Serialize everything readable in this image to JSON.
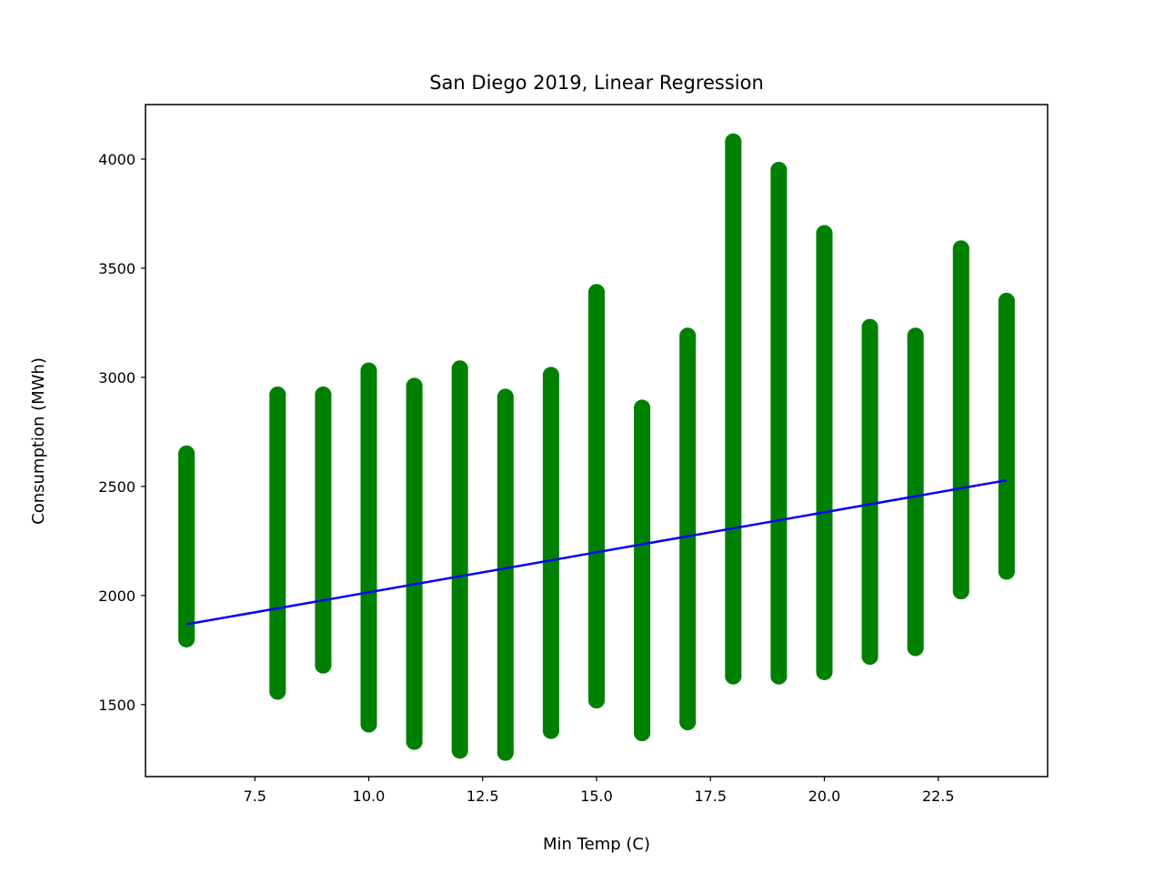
{
  "chart_data": {
    "type": "scatter",
    "title": "San Diego 2019, Linear Regression",
    "xlabel": "Min Temp (C)",
    "ylabel": "Consumption (MWh)",
    "xlim": [
      5.1,
      24.9
    ],
    "ylim": [
      1170,
      4250
    ],
    "xticks": [
      "7.5",
      "10.0",
      "12.5",
      "15.0",
      "17.5",
      "20.0",
      "22.5"
    ],
    "yticks": [
      "1500",
      "2000",
      "2500",
      "3000",
      "3500",
      "4000"
    ],
    "grid": false,
    "legend": "none",
    "colors": {
      "points": "#008000",
      "regression_line": "#0000ff"
    },
    "points": {
      "x": [
        6,
        8,
        9,
        10,
        11,
        12,
        13,
        14,
        15,
        16,
        17,
        18,
        19,
        20,
        21,
        22,
        23,
        24
      ],
      "y_min": [
        1800,
        1560,
        1680,
        1410,
        1330,
        1290,
        1280,
        1380,
        1520,
        1370,
        1420,
        1630,
        1630,
        1650,
        1720,
        1760,
        2020,
        2110
      ],
      "y_max": [
        2650,
        2920,
        2920,
        3030,
        2960,
        3040,
        2910,
        3010,
        3390,
        2860,
        3190,
        4080,
        3950,
        3660,
        3230,
        3190,
        3590,
        3350
      ]
    },
    "regression_line": {
      "x": [
        6,
        24
      ],
      "y": [
        1868,
        2528
      ]
    }
  }
}
